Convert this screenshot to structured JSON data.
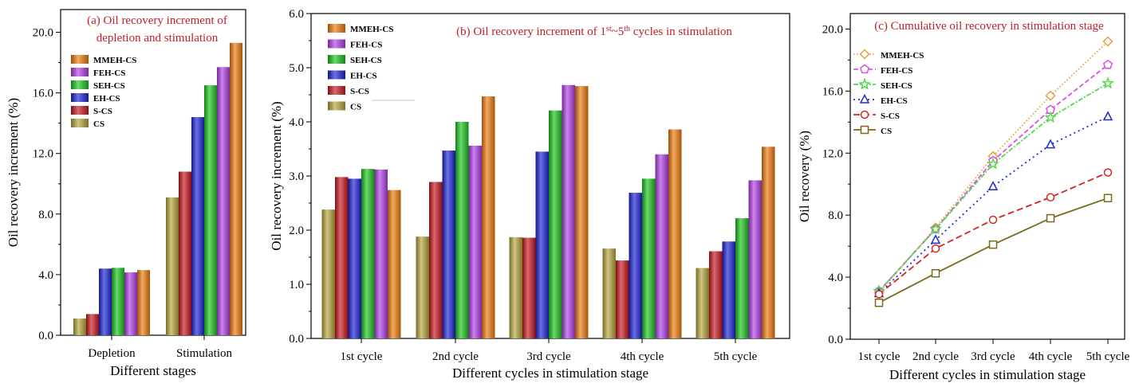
{
  "series_names": [
    "MMEH-CS",
    "FEH-CS",
    "SEH-CS",
    "EH-CS",
    "S-CS",
    "CS"
  ],
  "colors": {
    "CS": "#b5a53a",
    "S-CS": "#c8161d",
    "EH-CS": "#1c22d6",
    "SEH-CS": "#19c41c",
    "FEH-CS": "#b13ee6",
    "MMEH-CS": "#ee7a0c"
  },
  "line_colors": {
    "MMEH-CS": "#e8a040",
    "FEH-CS": "#d94fe6",
    "SEH-CS": "#55d84a",
    "EH-CS": "#1f2bd0",
    "S-CS": "#d42525",
    "CS": "#7a6a1c"
  },
  "line_markers": {
    "MMEH-CS": "diamond",
    "FEH-CS": "pentagon",
    "SEH-CS": "star",
    "EH-CS": "triangle",
    "S-CS": "circle",
    "CS": "square"
  },
  "chart_data": [
    {
      "type": "bar",
      "title": "(a) Oil recovery increment of depletion and stimulation",
      "title_lines": [
        "(a) Oil recovery increment of",
        "depletion and stimulation"
      ],
      "xlabel": "Different stages",
      "ylabel": "Oil recovery increment (%)",
      "ylim": [
        0,
        21.5
      ],
      "yticks": [
        0,
        4,
        8,
        12,
        16,
        20
      ],
      "ytick_labels": [
        "0.0",
        "4.0",
        "8.0",
        "12.0",
        "16.0",
        "20.0"
      ],
      "categories": [
        "Depletion",
        "Stimulation"
      ],
      "series": [
        {
          "name": "CS",
          "values": [
            1.1,
            9.1
          ]
        },
        {
          "name": "S-CS",
          "values": [
            1.4,
            10.8
          ]
        },
        {
          "name": "EH-CS",
          "values": [
            4.4,
            14.4
          ]
        },
        {
          "name": "SEH-CS",
          "values": [
            4.45,
            16.5
          ]
        },
        {
          "name": "FEH-CS",
          "values": [
            4.15,
            17.7
          ]
        },
        {
          "name": "MMEH-CS",
          "values": [
            4.3,
            19.3
          ]
        }
      ],
      "legend": "top-left"
    },
    {
      "type": "bar",
      "title_parts": [
        "(b) Oil recovery increment of 1",
        "st",
        "~5",
        "th",
        " cycles in stimulation"
      ],
      "xlabel": "Different cycles in stimulation stage",
      "ylabel": "Oil recovery increment (%)",
      "ylim": [
        0,
        6
      ],
      "yticks": [
        0,
        1,
        2,
        3,
        4,
        5,
        6
      ],
      "ytick_labels": [
        "0.0",
        "1.0",
        "2.0",
        "3.0",
        "4.0",
        "5.0",
        "6.0"
      ],
      "categories": [
        "1st cycle",
        "2nd cycle",
        "3rd cycle",
        "4th cycle",
        "5th cycle"
      ],
      "series": [
        {
          "name": "CS",
          "values": [
            2.38,
            1.88,
            1.87,
            1.66,
            1.3
          ]
        },
        {
          "name": "S-CS",
          "values": [
            2.98,
            2.89,
            1.86,
            1.44,
            1.61
          ]
        },
        {
          "name": "EH-CS",
          "values": [
            2.95,
            3.47,
            3.45,
            2.69,
            1.79
          ]
        },
        {
          "name": "SEH-CS",
          "values": [
            3.13,
            4.0,
            4.21,
            2.95,
            2.22
          ]
        },
        {
          "name": "FEH-CS",
          "values": [
            3.12,
            3.56,
            4.68,
            3.4,
            2.92
          ]
        },
        {
          "name": "MMEH-CS",
          "values": [
            2.74,
            4.47,
            4.66,
            3.86,
            3.54
          ]
        }
      ],
      "legend": "top-left"
    },
    {
      "type": "line",
      "title": "(c) Cumulative oil recovery in stimulation stage",
      "xlabel": "Different cycles in stimulation stage",
      "ylabel": "Oil recovery (%)",
      "ylim": [
        0,
        21
      ],
      "yticks": [
        0,
        4,
        8,
        12,
        16,
        20
      ],
      "ytick_labels": [
        "0.0",
        "4.0",
        "8.0",
        "12.0",
        "16.0",
        "20.0"
      ],
      "categories": [
        "1st cycle",
        "2nd cycle",
        "3rd cycle",
        "4th cycle",
        "5th cycle"
      ],
      "series": [
        {
          "name": "MMEH-CS",
          "values": [
            3.0,
            7.2,
            11.8,
            15.7,
            19.2
          ]
        },
        {
          "name": "FEH-CS",
          "values": [
            3.1,
            7.1,
            11.5,
            14.8,
            17.7
          ]
        },
        {
          "name": "SEH-CS",
          "values": [
            3.1,
            7.1,
            11.3,
            14.3,
            16.5
          ]
        },
        {
          "name": "EH-CS",
          "values": [
            2.95,
            6.4,
            9.85,
            12.55,
            14.35
          ]
        },
        {
          "name": "S-CS",
          "values": [
            2.9,
            5.85,
            7.7,
            9.15,
            10.75
          ]
        },
        {
          "name": "CS",
          "values": [
            2.35,
            4.25,
            6.1,
            7.8,
            9.1
          ]
        }
      ],
      "legend": "top-left"
    }
  ]
}
